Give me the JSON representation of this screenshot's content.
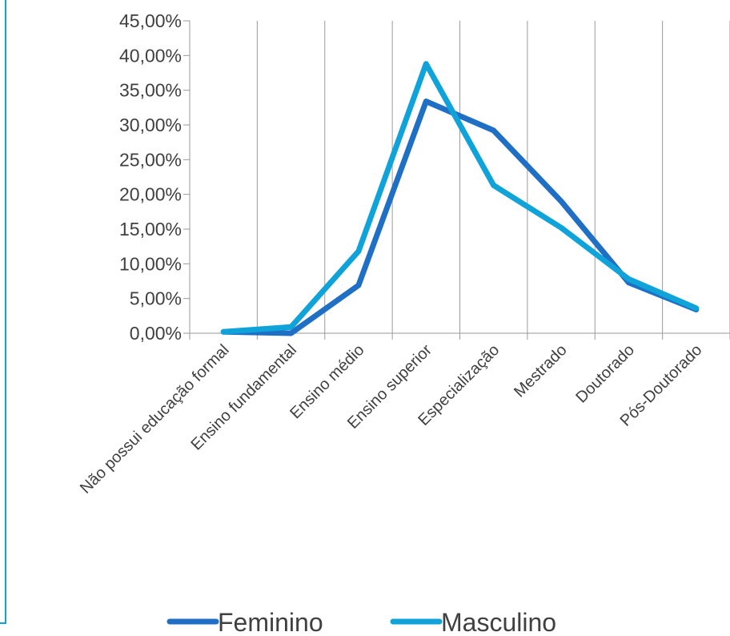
{
  "chart_data": {
    "type": "line",
    "categories": [
      "Não possui educação formal",
      "Ensino fundamental",
      "Ensino médio",
      "Ensino superior",
      "Especialização",
      "Mestrado",
      "Doutorado",
      "Pós-Doutorado"
    ],
    "series": [
      {
        "name": "Feminino",
        "color": "#1F6FC5",
        "values": [
          0.2,
          0.0,
          6.9,
          33.4,
          29.2,
          19.0,
          7.3,
          3.4
        ]
      },
      {
        "name": "Masculino",
        "color": "#0FA3DA",
        "values": [
          0.2,
          0.9,
          11.8,
          38.8,
          21.3,
          15.2,
          7.8,
          3.6
        ]
      }
    ],
    "yticks": [
      "0,00%",
      "5,00%",
      "10,00%",
      "15,00%",
      "20,00%",
      "25,00%",
      "30,00%",
      "35,00%",
      "40,00%",
      "45,00%"
    ],
    "ylim": [
      0,
      45
    ],
    "grid": "vertical",
    "legend": "bottom",
    "title": "",
    "xlabel": "",
    "ylabel": ""
  },
  "frame_color": "#0FA3DA"
}
